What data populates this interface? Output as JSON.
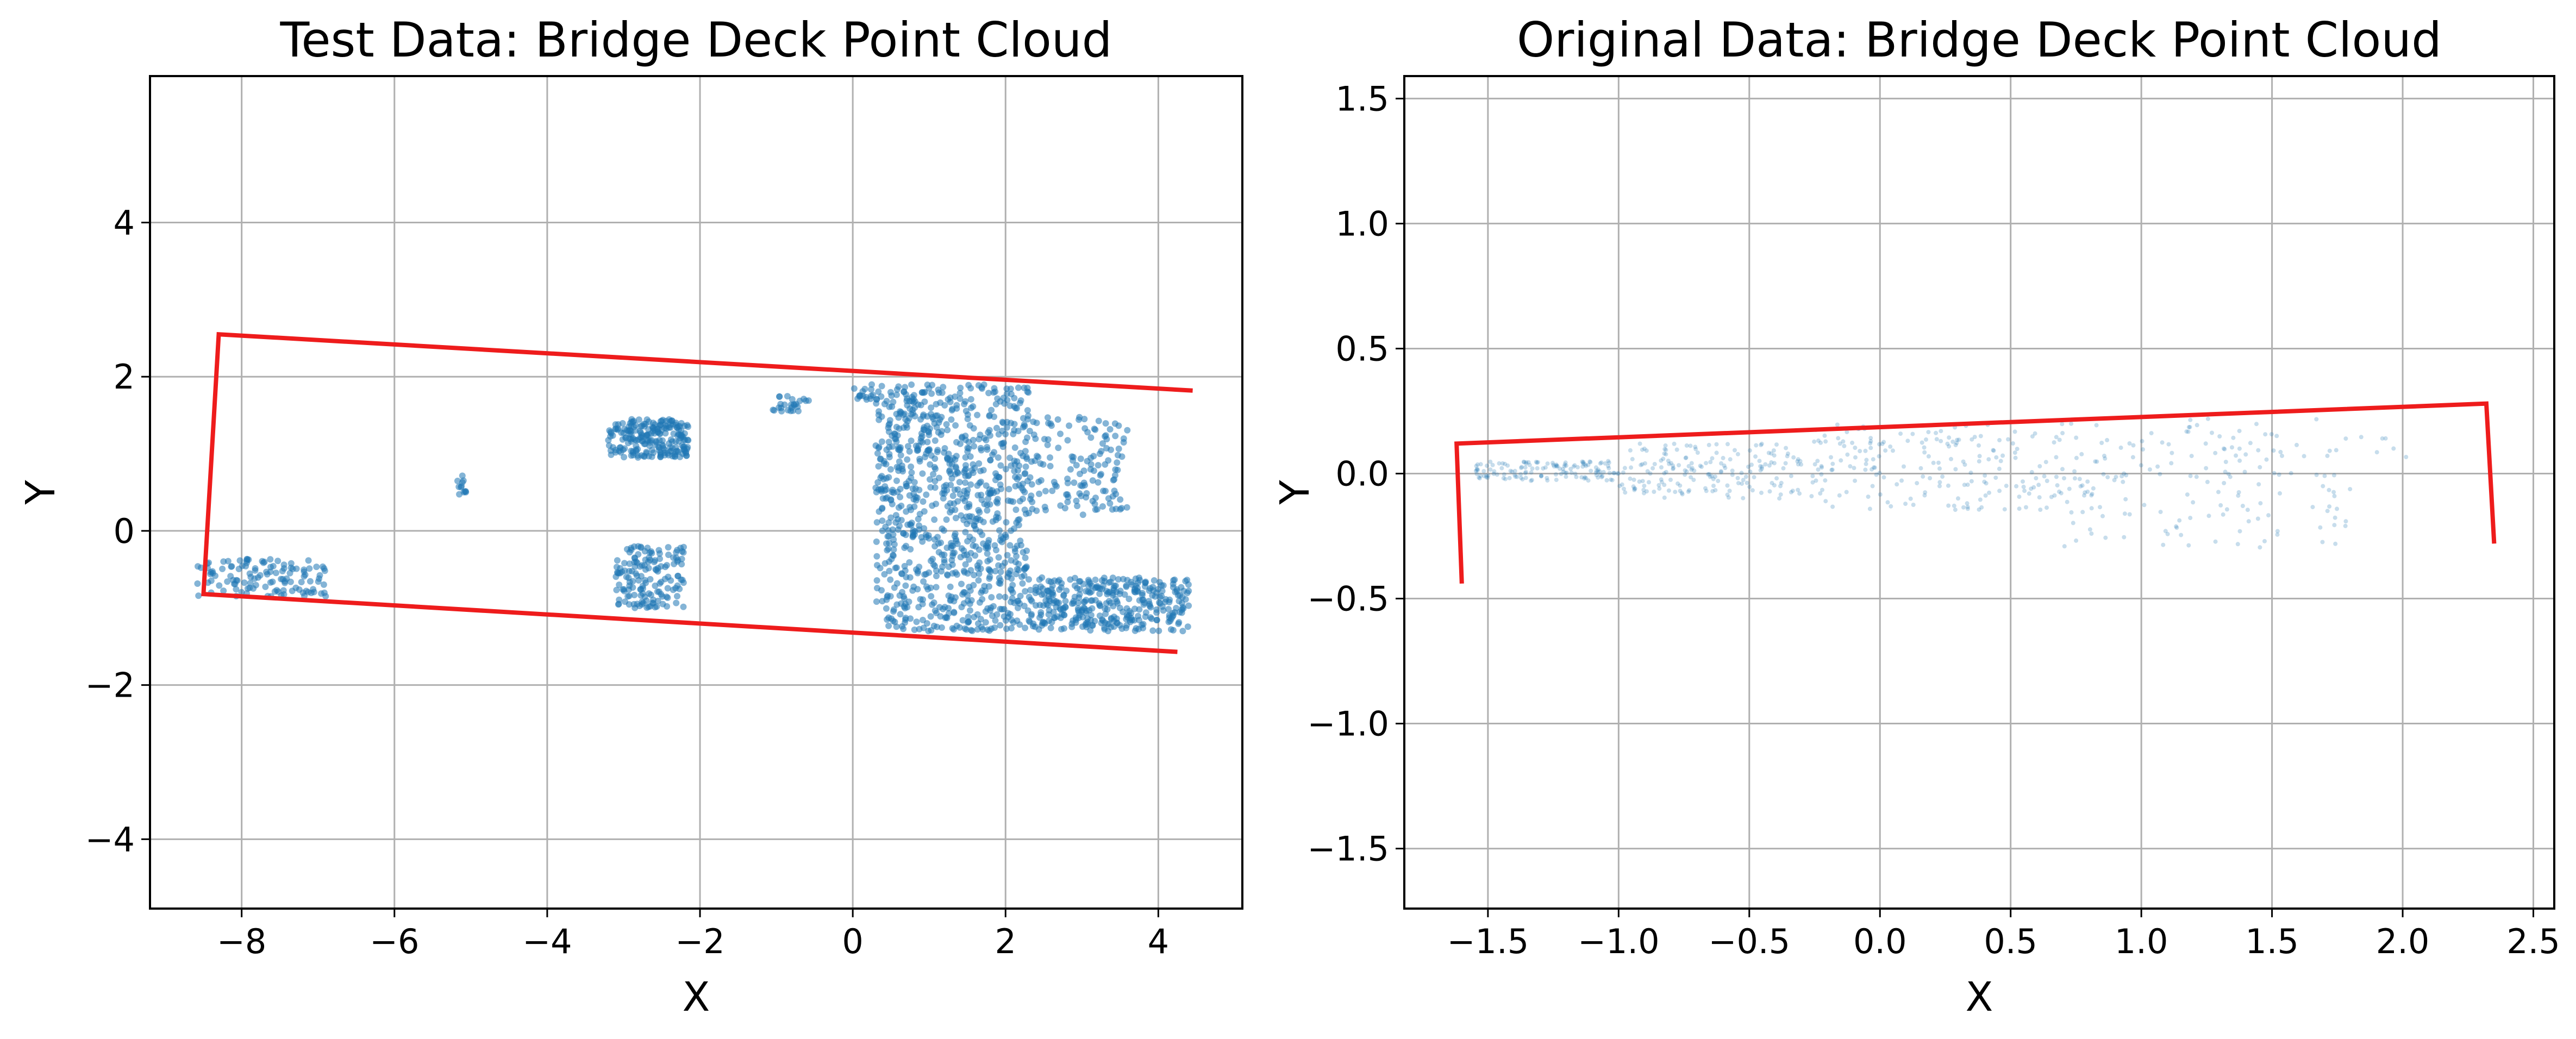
{
  "figure": {
    "panels": [
      {
        "title": "Test Data: Bridge Deck Point Cloud",
        "xlabel": "X",
        "ylabel": "Y"
      },
      {
        "title": "Original Data: Bridge Deck Point Cloud",
        "xlabel": "X",
        "ylabel": "Y"
      }
    ]
  },
  "chart_data": [
    {
      "type": "scatter",
      "title": "Test Data: Bridge Deck Point Cloud",
      "xlabel": "X",
      "ylabel": "Y",
      "xlim": [
        -9.2,
        5.1
      ],
      "ylim": [
        -4.9,
        5.9
      ],
      "xticks": [
        -8,
        -6,
        -4,
        -2,
        0,
        2,
        4
      ],
      "yticks": [
        -4,
        -2,
        0,
        2,
        4
      ],
      "xtick_labels": [
        "−8",
        "−6",
        "−4",
        "−2",
        "0",
        "2",
        "4"
      ],
      "ytick_labels": [
        "−4",
        "−2",
        "0",
        "2",
        "4"
      ],
      "grid": true,
      "point_color": "#1f77b4",
      "point_opacity": 0.55,
      "point_clusters": [
        {
          "x": [
            -8.6,
            -6.9
          ],
          "y": [
            -0.85,
            -0.35
          ],
          "approx_count": 120
        },
        {
          "x": [
            -5.2,
            -5.05
          ],
          "y": [
            0.45,
            0.8
          ],
          "approx_count": 12
        },
        {
          "x": [
            -3.2,
            -2.15
          ],
          "y": [
            0.95,
            1.45
          ],
          "approx_count": 220
        },
        {
          "x": [
            -3.1,
            -2.2
          ],
          "y": [
            -1.0,
            -0.2
          ],
          "approx_count": 150
        },
        {
          "x": [
            -1.05,
            -0.55
          ],
          "y": [
            1.55,
            1.75
          ],
          "approx_count": 25
        },
        {
          "x": [
            0.0,
            0.3
          ],
          "y": [
            1.7,
            1.9
          ],
          "approx_count": 15
        },
        {
          "x": [
            0.3,
            2.3
          ],
          "y": [
            -1.3,
            1.9
          ],
          "approx_count": 900
        },
        {
          "x": [
            2.2,
            3.6
          ],
          "y": [
            0.2,
            1.5
          ],
          "approx_count": 150
        },
        {
          "x": [
            2.3,
            4.4
          ],
          "y": [
            -1.3,
            -0.6
          ],
          "approx_count": 350
        }
      ],
      "line": {
        "color": "#ee1c1c",
        "x": [
          4.45,
          -8.3,
          -8.5,
          4.25
        ],
        "y": [
          1.82,
          2.55,
          -0.82,
          -1.57
        ]
      }
    },
    {
      "type": "scatter",
      "title": "Original Data: Bridge Deck Point Cloud",
      "xlabel": "X",
      "ylabel": "Y",
      "xlim": [
        -1.82,
        2.58
      ],
      "ylim": [
        -1.74,
        1.59
      ],
      "xticks": [
        -1.5,
        -1.0,
        -0.5,
        0.0,
        0.5,
        1.0,
        1.5,
        2.0,
        2.5
      ],
      "yticks": [
        -1.5,
        -1.0,
        -0.5,
        0.0,
        0.5,
        1.0,
        1.5
      ],
      "xtick_labels": [
        "−1.5",
        "−1.0",
        "−0.5",
        "0.0",
        "0.5",
        "1.0",
        "1.5",
        "2.0",
        "2.5"
      ],
      "ytick_labels": [
        "−1.5",
        "−1.0",
        "−0.5",
        "0.0",
        "0.5",
        "1.0",
        "1.5"
      ],
      "grid": true,
      "point_color": "#1f77b4",
      "point_opacity": 0.25,
      "point_clusters": [
        {
          "x": [
            -1.55,
            -1.0
          ],
          "y": [
            -0.03,
            0.05
          ],
          "approx_count": 140
        },
        {
          "x": [
            -1.0,
            -0.3
          ],
          "y": [
            -0.1,
            0.12
          ],
          "approx_count": 180
        },
        {
          "x": [
            -0.3,
            0.7
          ],
          "y": [
            -0.15,
            0.2
          ],
          "approx_count": 200
        },
        {
          "x": [
            0.7,
            1.8
          ],
          "y": [
            -0.3,
            0.22
          ],
          "approx_count": 170
        },
        {
          "x": [
            1.8,
            2.25
          ],
          "y": [
            0.05,
            0.15
          ],
          "approx_count": 6
        }
      ],
      "line": {
        "color": "#ee1c1c",
        "x": [
          -1.6,
          -1.62,
          2.32,
          2.35
        ],
        "y": [
          -0.44,
          0.12,
          0.28,
          -0.28
        ]
      }
    }
  ]
}
